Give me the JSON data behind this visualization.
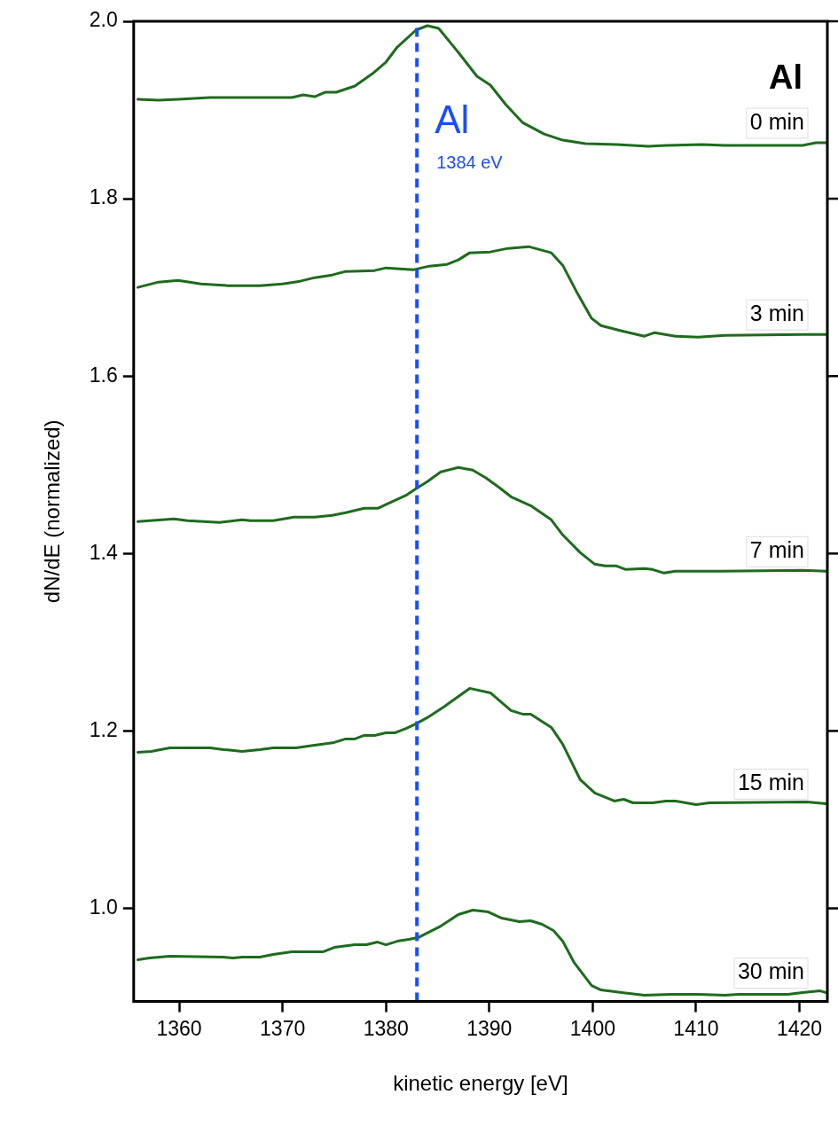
{
  "chart_data": {
    "type": "line",
    "xlabel": "kinetic energy [eV]",
    "ylabel": "dN/dE (normalized)",
    "xlim": [
      1355.6,
      1422.7
    ],
    "ylim": [
      0.895,
      2.0
    ],
    "xticks": [
      1360,
      1370,
      1380,
      1390,
      1400,
      1410,
      1420
    ],
    "yticks": [
      {
        "value": 1,
        "label": "1.0"
      },
      1.2,
      1.4,
      1.6,
      1.8,
      {
        "value": 2,
        "label": "2.0"
      }
    ],
    "marker": "none",
    "line_style": "solid",
    "ref_lines": [
      {
        "axis": "x",
        "value": 1383,
        "label": "Al",
        "color": "#1a4dff",
        "line_style": "dashed"
      }
    ],
    "annotations": [
      "Al",
      {
        "text": "1384 eV",
        "x": 1383,
        "y": 1.84
      }
    ],
    "series": [
      {
        "name": "0 min",
        "color": "#1e6b1e",
        "x": [
          1356.0,
          1358.0,
          1359.9,
          1363.0,
          1366.9,
          1370.9,
          1372.0,
          1373.1,
          1374.1,
          1375.2,
          1377.0,
          1378.7,
          1380.0,
          1381.1,
          1382.9,
          1384.0,
          1385.1,
          1387.0,
          1388.8,
          1390.1,
          1391.6,
          1393.2,
          1395.3,
          1397.1,
          1399.3,
          1402.3,
          1405.4,
          1407.1,
          1410.6,
          1412.8,
          1420.3,
          1421.6,
          1422.6
        ],
        "values": [
          1.912,
          1.911,
          1.912,
          1.914,
          1.914,
          1.914,
          1.917,
          1.915,
          1.92,
          1.92,
          1.927,
          1.941,
          1.954,
          1.971,
          1.99,
          1.995,
          1.992,
          1.965,
          1.938,
          1.928,
          1.906,
          1.886,
          1.873,
          1.866,
          1.862,
          1.861,
          1.859,
          1.86,
          1.861,
          1.86,
          1.86,
          1.863,
          1.863
        ]
      },
      {
        "name": "3 min",
        "color": "#1e6b1e",
        "x": [
          1356.0,
          1358.0,
          1359.9,
          1362.1,
          1364.7,
          1367.8,
          1370.0,
          1371.7,
          1373.1,
          1374.8,
          1376.1,
          1378.9,
          1380.0,
          1382.7,
          1384.2,
          1385.9,
          1387.0,
          1388.1,
          1390.1,
          1391.8,
          1393.8,
          1396.0,
          1397.1,
          1398.4,
          1399.9,
          1400.8,
          1402.8,
          1405.0,
          1406.0,
          1408.0,
          1410.2,
          1412.8,
          1420.3,
          1422.6
        ],
        "values": [
          1.7,
          1.706,
          1.708,
          1.704,
          1.702,
          1.702,
          1.704,
          1.707,
          1.711,
          1.714,
          1.718,
          1.719,
          1.722,
          1.72,
          1.724,
          1.726,
          1.731,
          1.739,
          1.74,
          1.744,
          1.746,
          1.739,
          1.725,
          1.696,
          1.665,
          1.657,
          1.651,
          1.645,
          1.649,
          1.645,
          1.644,
          1.646,
          1.647,
          1.647
        ]
      },
      {
        "name": "7 min",
        "color": "#1e6b1e",
        "x": [
          1356.0,
          1359.5,
          1360.8,
          1363.9,
          1366.1,
          1366.9,
          1369.1,
          1371.1,
          1373.1,
          1374.8,
          1376.1,
          1377.9,
          1379.2,
          1380.5,
          1382.0,
          1382.9,
          1384.0,
          1385.3,
          1387.0,
          1388.4,
          1389.7,
          1391.0,
          1392.1,
          1394.0,
          1396.0,
          1397.1,
          1398.8,
          1400.2,
          1401.2,
          1402.3,
          1403.2,
          1405.0,
          1405.8,
          1406.9,
          1408.0,
          1412.4,
          1420.3,
          1422.6
        ],
        "values": [
          1.436,
          1.439,
          1.437,
          1.435,
          1.438,
          1.437,
          1.437,
          1.441,
          1.441,
          1.443,
          1.446,
          1.451,
          1.451,
          1.458,
          1.466,
          1.473,
          1.481,
          1.492,
          1.497,
          1.494,
          1.485,
          1.474,
          1.464,
          1.454,
          1.438,
          1.421,
          1.401,
          1.388,
          1.386,
          1.386,
          1.382,
          1.383,
          1.382,
          1.378,
          1.38,
          1.38,
          1.381,
          1.38
        ]
      },
      {
        "name": "15 min",
        "color": "#1e6b1e",
        "x": [
          1356.0,
          1357.3,
          1359.1,
          1363.0,
          1364.3,
          1366.1,
          1367.8,
          1369.1,
          1371.3,
          1373.1,
          1375.0,
          1376.1,
          1377.0,
          1377.9,
          1378.9,
          1380.0,
          1380.9,
          1382.0,
          1382.9,
          1384.0,
          1385.7,
          1388.1,
          1390.1,
          1392.1,
          1393.2,
          1394.0,
          1396.0,
          1397.1,
          1398.8,
          1400.2,
          1402.1,
          1403.0,
          1403.9,
          1405.8,
          1407.1,
          1408.0,
          1410.0,
          1411.3,
          1420.7,
          1422.6
        ],
        "values": [
          1.176,
          1.177,
          1.181,
          1.181,
          1.179,
          1.177,
          1.179,
          1.181,
          1.181,
          1.184,
          1.187,
          1.191,
          1.191,
          1.195,
          1.195,
          1.198,
          1.198,
          1.203,
          1.208,
          1.215,
          1.228,
          1.248,
          1.243,
          1.223,
          1.219,
          1.219,
          1.204,
          1.185,
          1.145,
          1.13,
          1.121,
          1.123,
          1.119,
          1.119,
          1.121,
          1.121,
          1.117,
          1.119,
          1.12,
          1.118
        ]
      },
      {
        "name": "30 min",
        "color": "#1e6b1e",
        "x": [
          1356.0,
          1357.1,
          1359.1,
          1364.3,
          1365.2,
          1366.1,
          1367.8,
          1369.1,
          1370.9,
          1373.9,
          1375.0,
          1377.0,
          1378.1,
          1379.2,
          1380.0,
          1381.1,
          1382.2,
          1383.1,
          1385.3,
          1387.0,
          1388.4,
          1389.9,
          1391.2,
          1392.9,
          1394.0,
          1395.1,
          1396.2,
          1397.1,
          1398.2,
          1399.9,
          1400.8,
          1402.8,
          1405.0,
          1407.6,
          1410.2,
          1412.8,
          1414.1,
          1418.9,
          1420.3,
          1422.0,
          1422.6
        ],
        "values": [
          0.942,
          0.944,
          0.946,
          0.945,
          0.944,
          0.945,
          0.945,
          0.948,
          0.951,
          0.951,
          0.956,
          0.959,
          0.959,
          0.962,
          0.959,
          0.963,
          0.965,
          0.967,
          0.98,
          0.993,
          0.998,
          0.996,
          0.989,
          0.985,
          0.986,
          0.982,
          0.975,
          0.963,
          0.939,
          0.913,
          0.908,
          0.905,
          0.902,
          0.903,
          0.903,
          0.902,
          0.903,
          0.903,
          0.905,
          0.907,
          0.905
        ]
      }
    ]
  }
}
